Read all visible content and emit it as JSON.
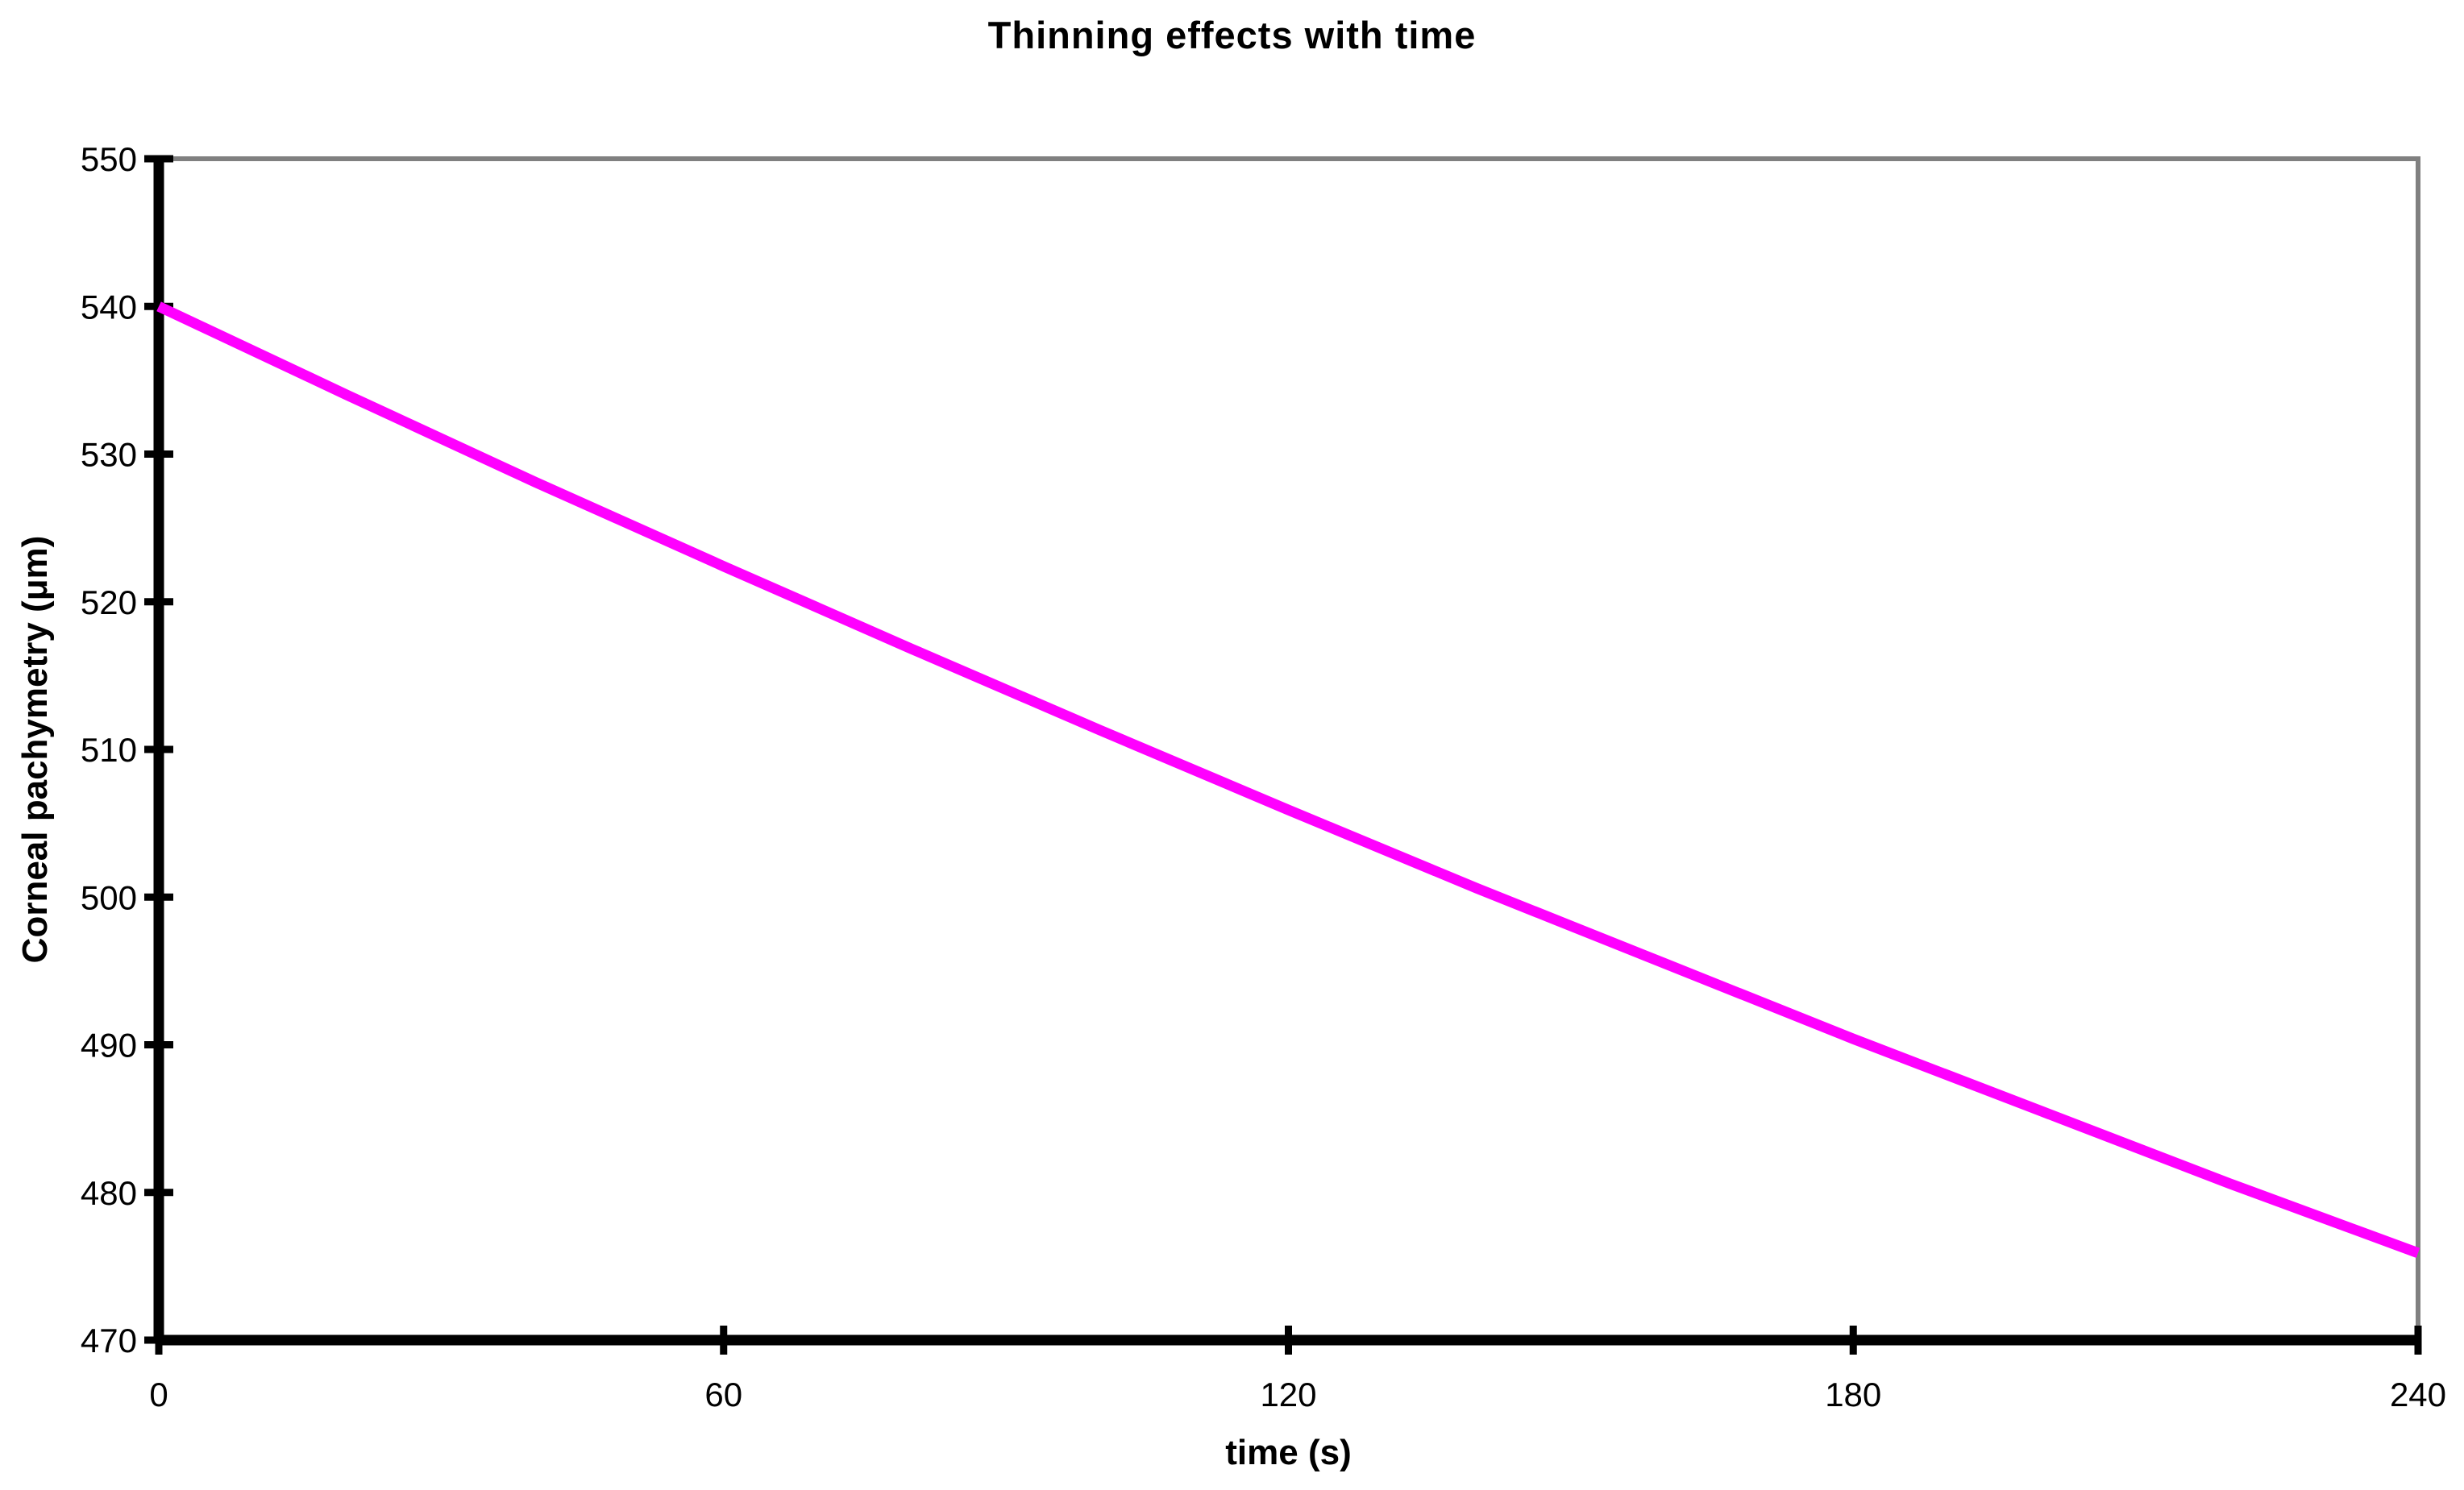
{
  "chart_data": {
    "type": "line",
    "title": "Thinning effects with time",
    "xlabel": "time (s)",
    "ylabel": "Corneal pachymetry (μm)",
    "xlim": [
      0,
      240
    ],
    "ylim": [
      470,
      550
    ],
    "xticks": [
      0,
      60,
      120,
      180,
      240
    ],
    "yticks": [
      470,
      480,
      490,
      500,
      510,
      520,
      530,
      540,
      550
    ],
    "grid": false,
    "legend": "none",
    "background_color": "#FFFFFF",
    "axis_color": "#000000",
    "plot_border_color": "#808080",
    "series": [
      {
        "color": "#FF00FF",
        "x": [
          0,
          20,
          40,
          60,
          80,
          100,
          120,
          140,
          160,
          180,
          200,
          220,
          240
        ],
        "y": [
          540.0,
          534.0,
          528.1,
          522.4,
          516.8,
          511.3,
          505.9,
          500.6,
          495.5,
          490.4,
          485.5,
          480.6,
          475.9
        ]
      }
    ]
  }
}
